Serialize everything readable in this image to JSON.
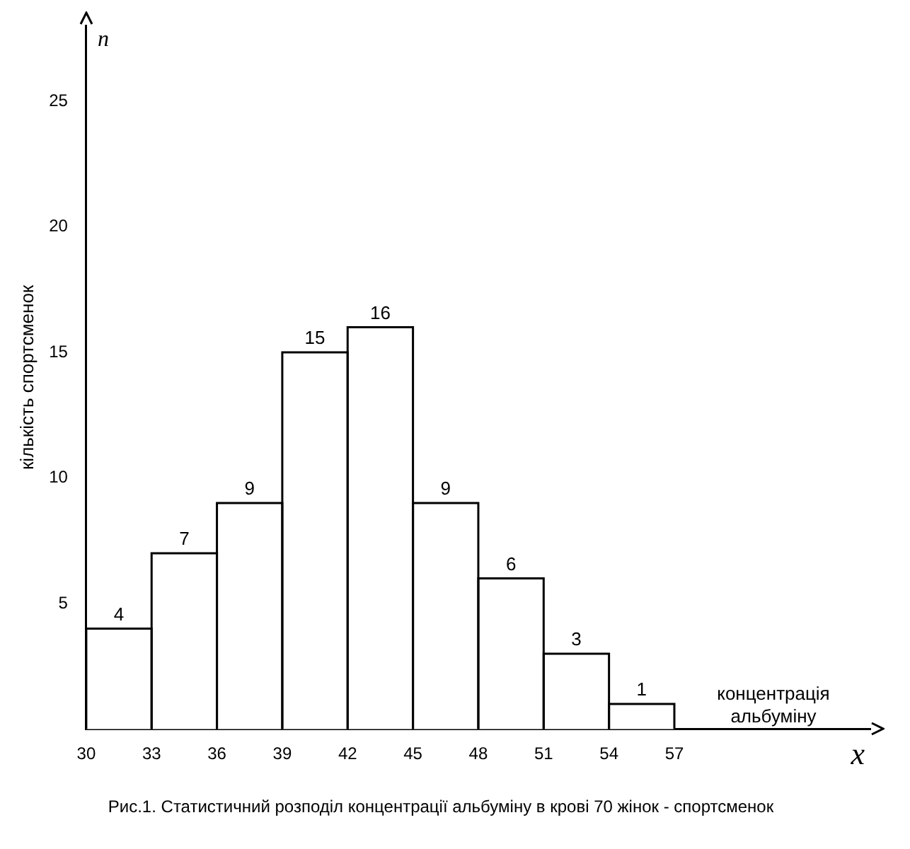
{
  "chart_data": {
    "type": "histogram",
    "title": "Рис.1. Статистичний розподіл концентрації альбуміну в крові 70 жінок - спортсменок",
    "xlabel": "концентрація альбуміну",
    "ylabel": "кількість спортсменок",
    "annotations": [
      "n",
      "x"
    ],
    "bins": [
      30,
      33,
      36,
      39,
      42,
      45,
      48,
      51,
      54,
      57
    ],
    "values": [
      4,
      7,
      9,
      15,
      16,
      9,
      6,
      3,
      1
    ],
    "color": "#ffffff",
    "xlim": [
      30,
      66
    ],
    "xticks": [
      30,
      33,
      36,
      39,
      42,
      45,
      48,
      51,
      54,
      57
    ],
    "ylim": [
      0,
      28
    ],
    "yticks": [
      5,
      10,
      15,
      20,
      25
    ],
    "data_labels": true,
    "grid": false,
    "legend": false
  }
}
